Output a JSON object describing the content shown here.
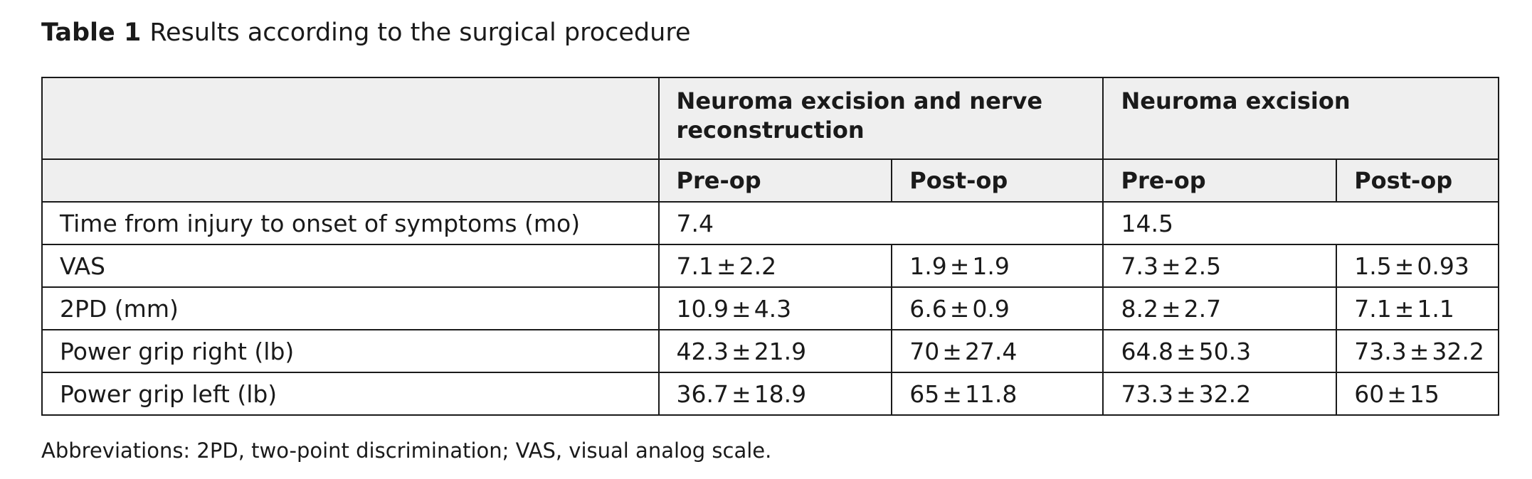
{
  "caption": {
    "label": "Table 1",
    "text": "Results according to the surgical procedure"
  },
  "table": {
    "groups": [
      "Neuroma excision and nerve reconstruction",
      "Neuroma excision"
    ],
    "subheaders": [
      "Pre-op",
      "Post-op",
      "Pre-op",
      "Post-op"
    ],
    "rows": [
      {
        "label": "Time from injury to onset of symptoms (mo)",
        "values": [
          "7.4",
          "14.5"
        ]
      },
      {
        "label": "VAS",
        "values": [
          {
            "m": "7.1",
            "sd": "2.2"
          },
          {
            "m": "1.9",
            "sd": "1.9"
          },
          {
            "m": "7.3",
            "sd": "2.5"
          },
          {
            "m": "1.5",
            "sd": "0.93"
          }
        ]
      },
      {
        "label": "2PD (mm)",
        "values": [
          {
            "m": "10.9",
            "sd": "4.3"
          },
          {
            "m": "6.6",
            "sd": "0.9"
          },
          {
            "m": "8.2",
            "sd": "2.7"
          },
          {
            "m": "7.1",
            "sd": "1.1"
          }
        ]
      },
      {
        "label": "Power grip right (lb)",
        "values": [
          {
            "m": "42.3",
            "sd": "21.9"
          },
          {
            "m": "70",
            "sd": "27.4"
          },
          {
            "m": "64.8",
            "sd": "50.3"
          },
          {
            "m": "73.3",
            "sd": "32.2"
          }
        ]
      },
      {
        "label": "Power grip left (lb)",
        "values": [
          {
            "m": "36.7",
            "sd": "18.9"
          },
          {
            "m": "65",
            "sd": "11.8"
          },
          {
            "m": "73.3",
            "sd": "32.2"
          },
          {
            "m": "60",
            "sd": "15"
          }
        ]
      }
    ],
    "pm_symbol": "±"
  },
  "footnote": "Abbreviations: 2PD, two-point discrimination; VAS, visual analog scale."
}
